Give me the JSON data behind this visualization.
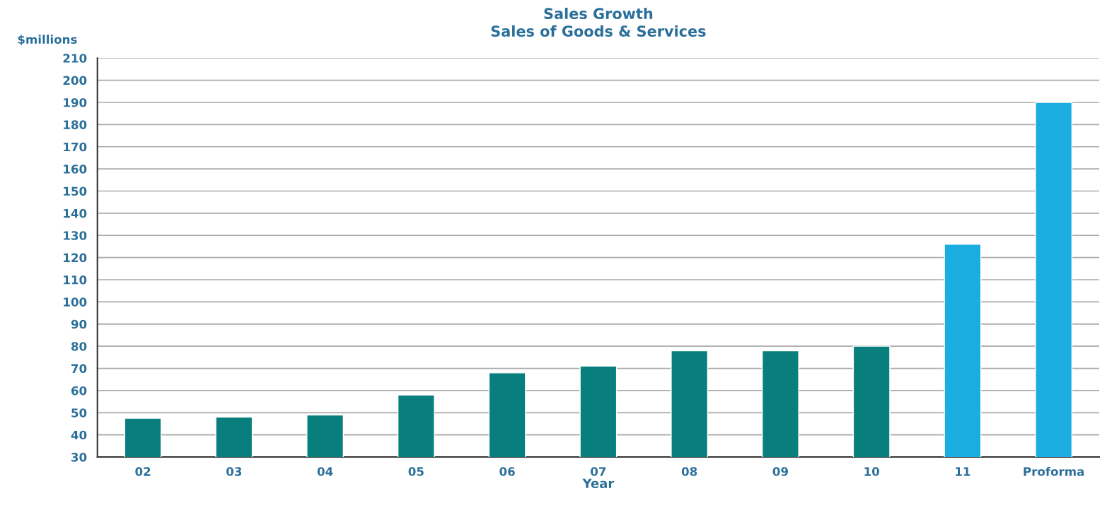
{
  "chart_data": {
    "type": "bar",
    "title": "Sales Growth\nSales of Goods & Services",
    "ylabel": "$millions",
    "xlabel": "Year",
    "categories": [
      "02",
      "03",
      "04",
      "05",
      "06",
      "07",
      "08",
      "09",
      "10",
      "11",
      "Proforma"
    ],
    "values": [
      47.5,
      48,
      49,
      58,
      68,
      71,
      78,
      78,
      80,
      126,
      190
    ],
    "colors": [
      "#087f7c",
      "#087f7c",
      "#087f7c",
      "#087f7c",
      "#087f7c",
      "#087f7c",
      "#087f7c",
      "#087f7c",
      "#087f7c",
      "#1aaee0",
      "#1aaee0"
    ],
    "ylim": [
      30,
      210
    ],
    "yticks": [
      30,
      40,
      50,
      60,
      70,
      80,
      90,
      100,
      110,
      120,
      130,
      140,
      150,
      160,
      170,
      180,
      190,
      200,
      210
    ],
    "grid": "y",
    "legend": false
  }
}
